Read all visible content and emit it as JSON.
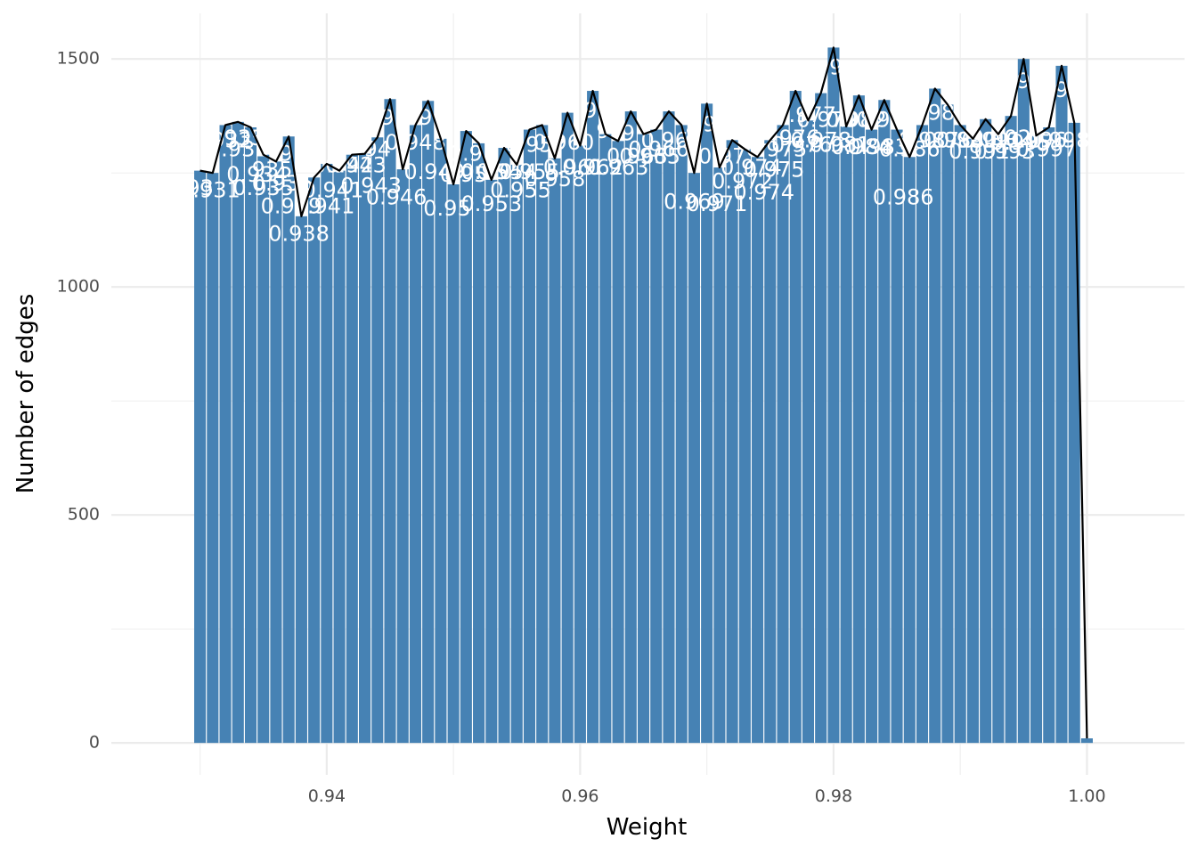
{
  "chart_data": {
    "type": "bar",
    "title": "",
    "xlabel": "Weight",
    "ylabel": "Number of edges",
    "xlim": [
      0.923,
      1.0077
    ],
    "ylim": [
      -70,
      1600
    ],
    "x_ticks": [
      0.94,
      0.96,
      0.98,
      1.0
    ],
    "x_tick_labels": [
      "0.94",
      "0.96",
      "0.98",
      "1.00"
    ],
    "y_ticks": [
      0,
      500,
      1000,
      1500
    ],
    "y_tick_labels": [
      "0",
      "500",
      "1000",
      "1500"
    ],
    "grid": true,
    "legend": "none",
    "bar_color": "#4682b4",
    "line_color": "#000000",
    "label_color": "#ffffff",
    "bar_width": 0.00092,
    "series": [
      {
        "x": [
          0.93,
          0.931,
          0.932,
          0.933,
          0.934,
          0.935,
          0.936,
          0.937,
          0.938,
          0.939,
          0.94,
          0.941,
          0.942,
          0.943,
          0.944,
          0.945,
          0.946,
          0.947,
          0.948,
          0.949,
          0.95,
          0.951,
          0.952,
          0.953,
          0.954,
          0.955,
          0.956,
          0.957,
          0.958,
          0.959,
          0.96,
          0.961,
          0.962,
          0.963,
          0.964,
          0.965,
          0.966,
          0.967,
          0.968,
          0.969,
          0.97,
          0.971,
          0.972,
          0.973,
          0.974,
          0.975,
          0.976,
          0.977,
          0.978,
          0.979,
          0.98,
          0.981,
          0.982,
          0.983,
          0.984,
          0.985,
          0.986,
          0.987,
          0.988,
          0.989,
          0.99,
          0.991,
          0.992,
          0.993,
          0.994,
          0.995,
          0.996,
          0.997,
          0.998,
          0.999,
          1.0
        ],
        "values": [
          1255,
          1250,
          1355,
          1362,
          1350,
          1290,
          1275,
          1330,
          1155,
          1240,
          1270,
          1255,
          1290,
          1292,
          1328,
          1412,
          1258,
          1355,
          1408,
          1325,
          1225,
          1342,
          1315,
          1235,
          1305,
          1268,
          1345,
          1355,
          1282,
          1382,
          1310,
          1430,
          1335,
          1320,
          1385,
          1335,
          1345,
          1385,
          1355,
          1250,
          1402,
          1262,
          1322,
          1302,
          1285,
          1322,
          1355,
          1430,
          1365,
          1425,
          1525,
          1352,
          1420,
          1345,
          1410,
          1345,
          1285,
          1355,
          1435,
          1400,
          1355,
          1325,
          1368,
          1335,
          1375,
          1500,
          1332,
          1350,
          1485,
          1360,
          10
        ]
      }
    ],
    "data_labels": [
      {
        "text": "93",
        "x": 0.93,
        "y": 1215
      },
      {
        "text": ".931",
        "x": 0.9313,
        "y": 1210
      },
      {
        "text": "932",
        "x": 0.9325,
        "y": 1320
      },
      {
        "text": "0.932",
        "x": 0.933,
        "y": 1300
      },
      {
        "text": "935",
        "x": 0.9335,
        "y": 1325
      },
      {
        "text": "0.934",
        "x": 0.9345,
        "y": 1245
      },
      {
        "text": "0.935",
        "x": 0.935,
        "y": 1215
      },
      {
        "text": "935",
        "x": 0.9357,
        "y": 1255
      },
      {
        "text": "9",
        "x": 0.9368,
        "y": 1290
      },
      {
        "text": "0.936",
        "x": 0.9365,
        "y": 1225
      },
      {
        "text": "0.939",
        "x": 0.9372,
        "y": 1175
      },
      {
        "text": "0.938",
        "x": 0.9378,
        "y": 1115
      },
      {
        "text": "0.941",
        "x": 0.9398,
        "y": 1175
      },
      {
        "text": "0.942",
        "x": 0.9413,
        "y": 1265
      },
      {
        "text": "0.941",
        "x": 0.9405,
        "y": 1210
      },
      {
        "text": "0.943",
        "x": 0.9423,
        "y": 1265
      },
      {
        "text": "0.943",
        "x": 0.9435,
        "y": 1220
      },
      {
        "text": "94",
        "x": 0.944,
        "y": 1300
      },
      {
        "text": "0.946",
        "x": 0.9455,
        "y": 1195
      },
      {
        "text": "9",
        "x": 0.9448,
        "y": 1370
      },
      {
        "text": "0.948",
        "x": 0.947,
        "y": 1315
      },
      {
        "text": "9",
        "x": 0.9478,
        "y": 1370
      },
      {
        "text": "0.949",
        "x": 0.9485,
        "y": 1250
      },
      {
        "text": "0.95",
        "x": 0.9495,
        "y": 1170
      },
      {
        "text": "0.95",
        "x": 0.9508,
        "y": 1245
      },
      {
        "text": "0.95",
        "x": 0.9515,
        "y": 1290
      },
      {
        "text": "0.953",
        "x": 0.953,
        "y": 1180
      },
      {
        "text": "0.954",
        "x": 0.953,
        "y": 1250
      },
      {
        "text": "0.954",
        "x": 0.9542,
        "y": 1250
      },
      {
        "text": "0.955",
        "x": 0.9553,
        "y": 1210
      },
      {
        "text": "0.955",
        "x": 0.956,
        "y": 1250
      },
      {
        "text": "0.957",
        "x": 0.9565,
        "y": 1310
      },
      {
        "text": "0.958",
        "x": 0.958,
        "y": 1235
      },
      {
        "text": "0.960",
        "x": 0.9587,
        "y": 1315
      },
      {
        "text": "0.961",
        "x": 0.9595,
        "y": 1260
      },
      {
        "text": "0.962",
        "x": 0.961,
        "y": 1260
      },
      {
        "text": "9",
        "x": 0.9608,
        "y": 1385
      },
      {
        "text": "9",
        "x": 0.9618,
        "y": 1340
      },
      {
        "text": "0.963",
        "x": 0.963,
        "y": 1260
      },
      {
        "text": "9",
        "x": 0.9638,
        "y": 1335
      },
      {
        "text": "0.963",
        "x": 0.9645,
        "y": 1285
      },
      {
        "text": "0.965",
        "x": 0.9655,
        "y": 1285
      },
      {
        "text": "0.966",
        "x": 0.9662,
        "y": 1300
      },
      {
        "text": "0.966",
        "x": 0.9672,
        "y": 1320
      },
      {
        "text": "8",
        "x": 0.9688,
        "y": 1330
      },
      {
        "text": "0.969",
        "x": 0.969,
        "y": 1185
      },
      {
        "text": "9",
        "x": 0.9702,
        "y": 1355
      },
      {
        "text": "0.97",
        "x": 0.9712,
        "y": 1285
      },
      {
        "text": "0.971",
        "x": 0.9708,
        "y": 1180
      },
      {
        "text": "0.972",
        "x": 0.9728,
        "y": 1230
      },
      {
        "text": "0.974",
        "x": 0.9735,
        "y": 1260
      },
      {
        "text": "0.974",
        "x": 0.9745,
        "y": 1205
      },
      {
        "text": "0.975",
        "x": 0.9753,
        "y": 1255
      },
      {
        "text": "0.975",
        "x": 0.9755,
        "y": 1300
      },
      {
        "text": "0.976",
        "x": 0.9765,
        "y": 1325
      },
      {
        "text": "0.976",
        "x": 0.9775,
        "y": 1310
      },
      {
        "text": "0.977",
        "x": 0.9778,
        "y": 1375
      },
      {
        "text": "0.978",
        "x": 0.979,
        "y": 1320
      },
      {
        "text": "0.979",
        "x": 0.9795,
        "y": 1365
      },
      {
        "text": "9",
        "x": 0.9802,
        "y": 1480
      },
      {
        "text": "0.981",
        "x": 0.9805,
        "y": 1310
      },
      {
        "text": "0.982",
        "x": 0.9818,
        "y": 1365
      },
      {
        "text": "0.984",
        "x": 0.9822,
        "y": 1305
      },
      {
        "text": "0.983",
        "x": 0.9835,
        "y": 1305
      },
      {
        "text": "0.985",
        "x": 0.9842,
        "y": 1365
      },
      {
        "text": "0.986",
        "x": 0.9855,
        "y": 1195
      },
      {
        "text": "0.986",
        "x": 0.986,
        "y": 1300
      },
      {
        "text": "0.987",
        "x": 0.9875,
        "y": 1320
      },
      {
        "text": "98",
        "x": 0.9885,
        "y": 1380
      },
      {
        "text": "0.988",
        "x": 0.9895,
        "y": 1320
      },
      {
        "text": "0.990",
        "x": 0.9905,
        "y": 1320
      },
      {
        "text": "0.991",
        "x": 0.9915,
        "y": 1295
      },
      {
        "text": "0.991",
        "x": 0.9925,
        "y": 1320
      },
      {
        "text": "0.993",
        "x": 0.9935,
        "y": 1295
      },
      {
        "text": "0.992",
        "x": 0.9932,
        "y": 1325
      },
      {
        "text": "0.995",
        "x": 0.9948,
        "y": 1315
      },
      {
        "text": "9",
        "x": 0.995,
        "y": 1450
      },
      {
        "text": "0.996",
        "x": 0.996,
        "y": 1320
      },
      {
        "text": "0.997",
        "x": 0.9968,
        "y": 1300
      },
      {
        "text": "0.998",
        "x": 0.9978,
        "y": 1320
      },
      {
        "text": "9",
        "x": 0.998,
        "y": 1430
      }
    ]
  }
}
